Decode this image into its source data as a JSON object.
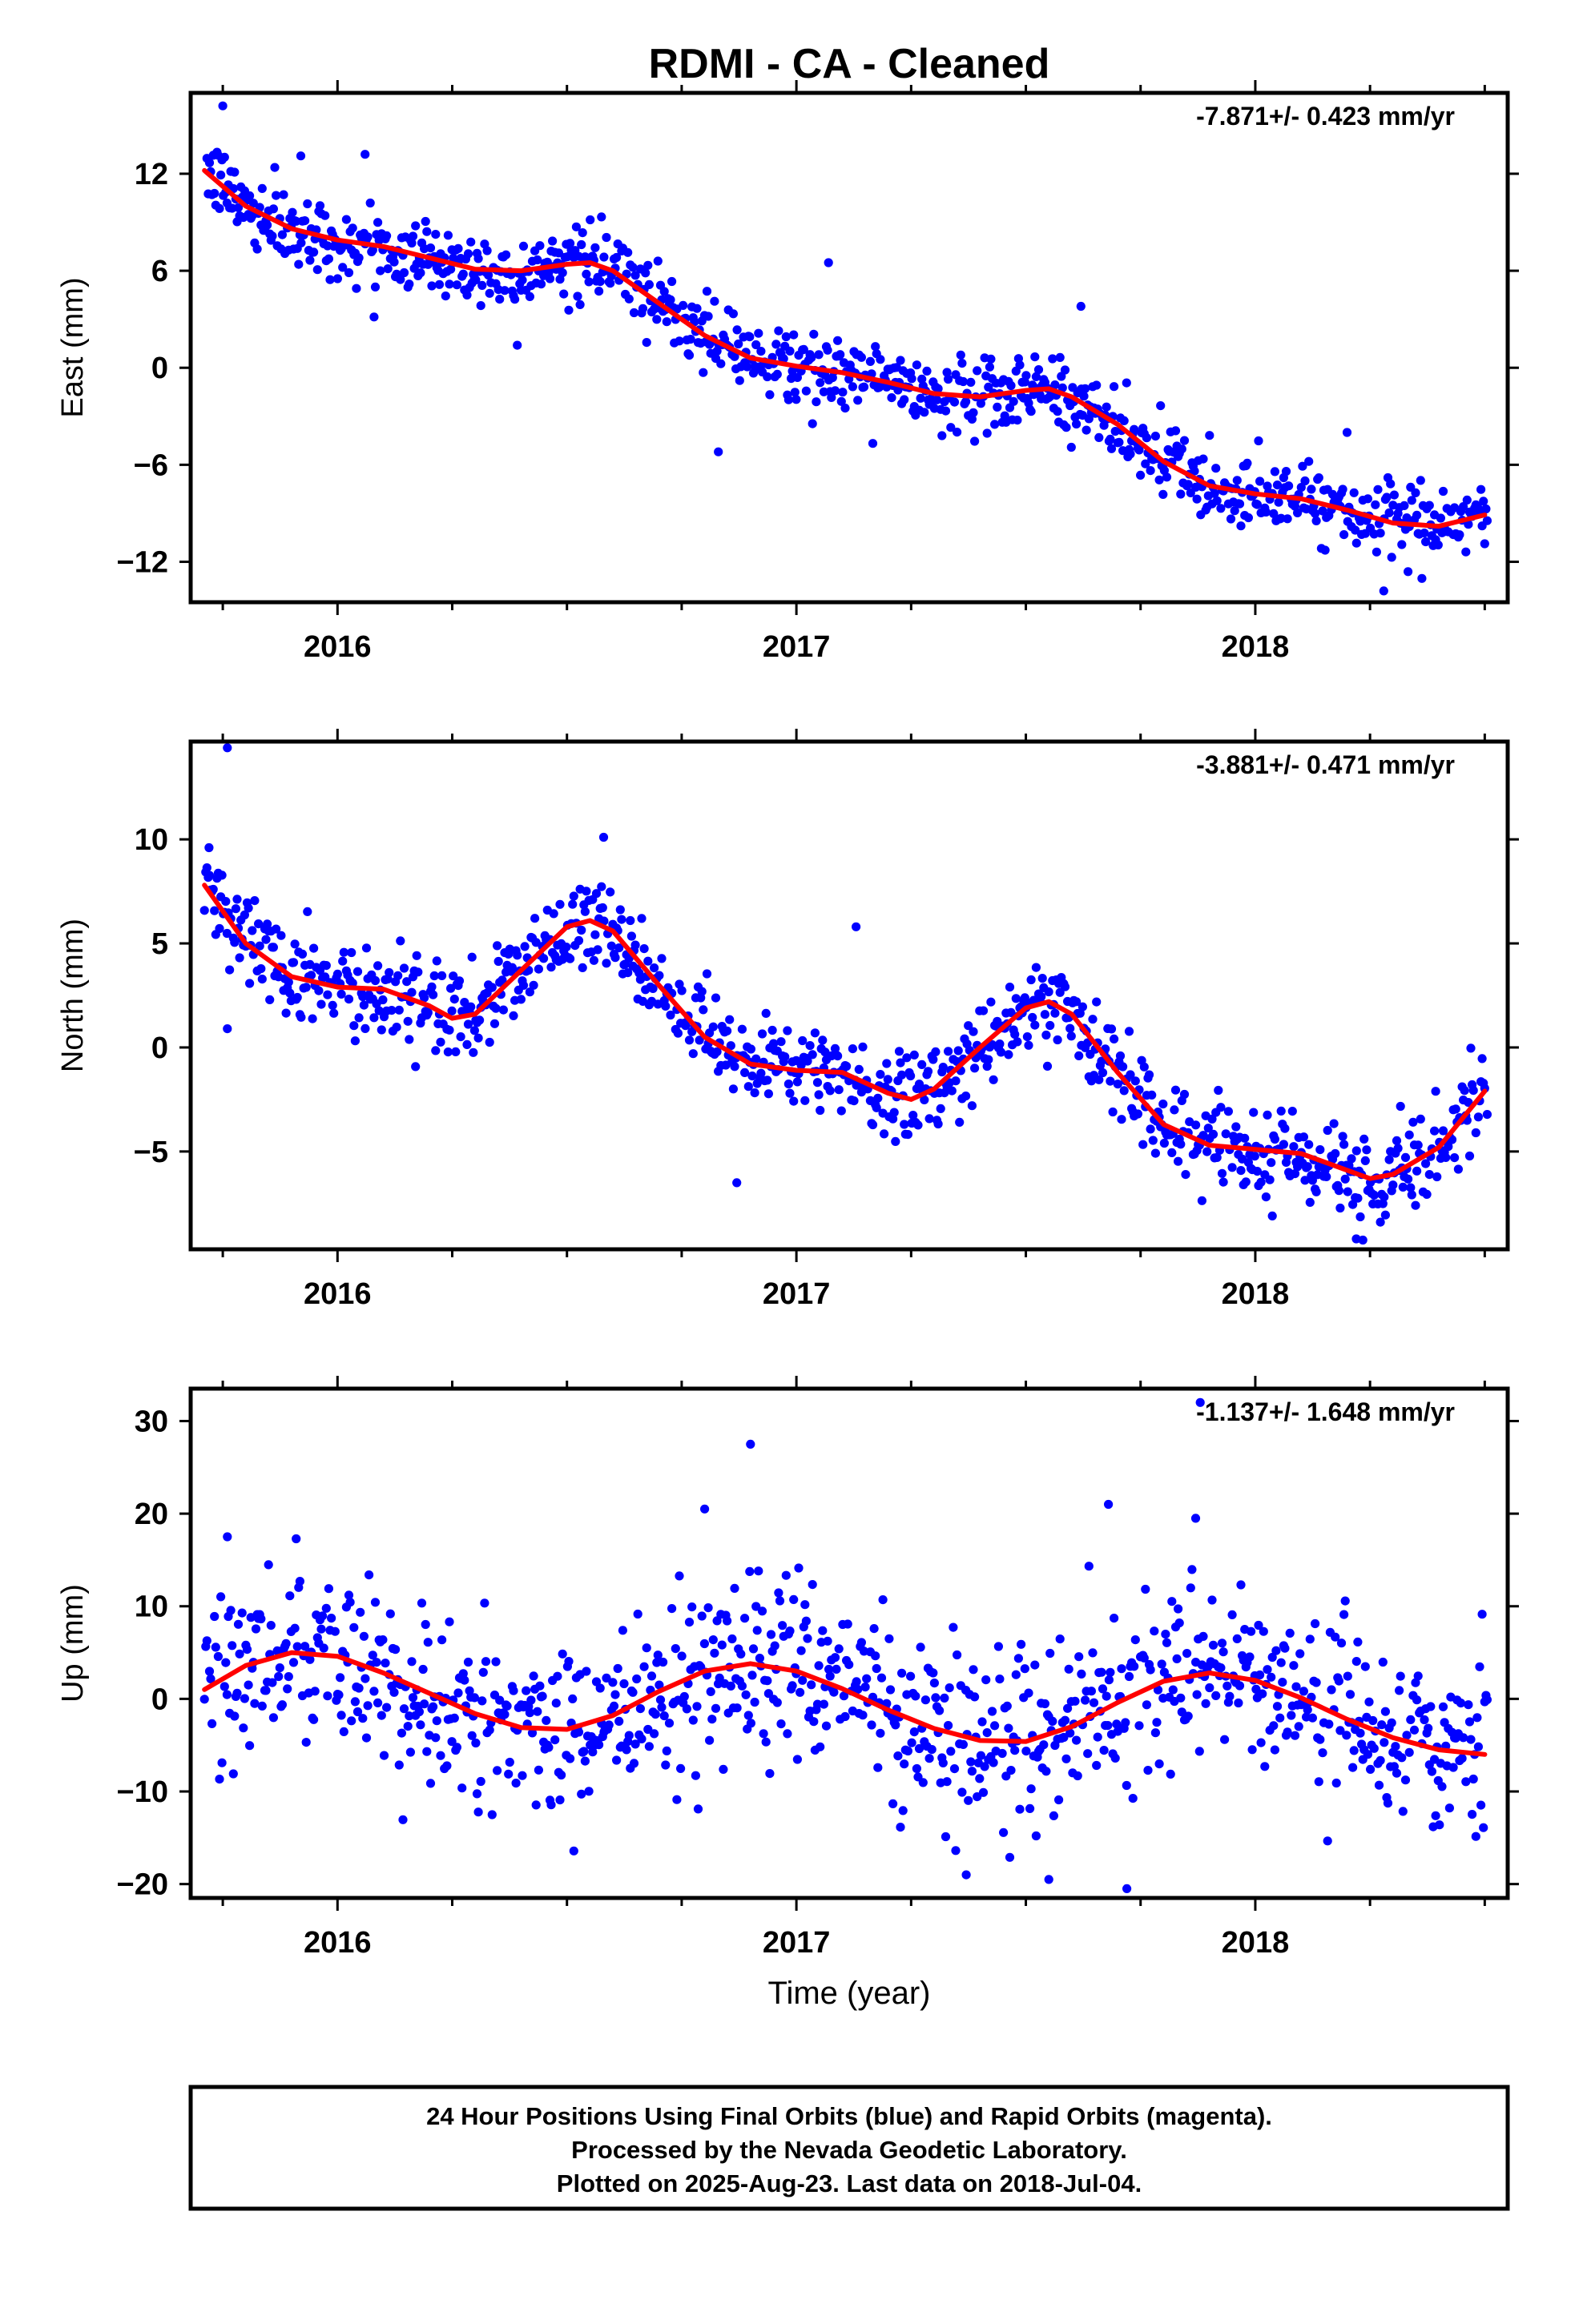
{
  "title": "RDMI  - CA - Cleaned",
  "footer": {
    "line1": "24 Hour Positions Using Final Orbits (blue) and Rapid Orbits (magenta).",
    "line2": "Processed by the Nevada Geodetic Laboratory.",
    "line3": "Plotted on 2025-Aug-23. Last data on 2018-Jul-04."
  },
  "colors": {
    "points": "#0000ff",
    "fit": "#ff0000",
    "frame": "#000000"
  },
  "chart_data": [
    {
      "type": "scatter",
      "ylabel": "East (mm)",
      "xlabel": "",
      "rate_label": "-7.871+/- 0.423 mm/yr",
      "xlim": [
        2015.68,
        2018.55
      ],
      "ylim": [
        -14.5,
        17
      ],
      "yticks": [
        -12,
        -6,
        0,
        6,
        12
      ],
      "xticks": [
        2016,
        2017,
        2018
      ],
      "xtick_labels": [
        "2016",
        "2017",
        "2018"
      ],
      "scatter_noise_mm": 1.1,
      "outliers": [
        {
          "x": 2015.75,
          "y": 16.2
        },
        {
          "x": 2015.92,
          "y": 13.1
        },
        {
          "x": 2016.06,
          "y": 13.2
        },
        {
          "x": 2017.07,
          "y": 6.5
        },
        {
          "x": 2017.62,
          "y": 3.8
        },
        {
          "x": 2016.83,
          "y": -5.2
        },
        {
          "x": 2018.28,
          "y": -13.8
        },
        {
          "x": 2018.2,
          "y": -4.0
        }
      ],
      "fit_curve": {
        "x": [
          2015.71,
          2015.8,
          2015.9,
          2016.0,
          2016.1,
          2016.2,
          2016.3,
          2016.4,
          2016.5,
          2016.55,
          2016.6,
          2016.7,
          2016.8,
          2016.9,
          2017.0,
          2017.1,
          2017.2,
          2017.3,
          2017.4,
          2017.5,
          2017.55,
          2017.6,
          2017.7,
          2017.8,
          2017.9,
          2018.0,
          2018.1,
          2018.2,
          2018.3,
          2018.4,
          2018.5
        ],
        "y": [
          12.2,
          10.0,
          8.6,
          7.9,
          7.5,
          6.8,
          6.1,
          6.0,
          6.4,
          6.5,
          6.0,
          4.0,
          2.0,
          0.6,
          0.1,
          -0.3,
          -0.9,
          -1.6,
          -1.8,
          -1.4,
          -1.3,
          -1.8,
          -3.5,
          -5.8,
          -7.3,
          -7.8,
          -8.1,
          -8.8,
          -9.6,
          -9.8,
          -9.1
        ]
      }
    },
    {
      "type": "scatter",
      "ylabel": "North (mm)",
      "xlabel": "",
      "rate_label": "-3.881+/- 0.471 mm/yr",
      "xlim": [
        2015.68,
        2018.55
      ],
      "ylim": [
        -9.7,
        14.7
      ],
      "yticks": [
        -5,
        0,
        5,
        10
      ],
      "xticks": [
        2016,
        2017,
        2018
      ],
      "xtick_labels": [
        "2016",
        "2017",
        "2018"
      ],
      "scatter_noise_mm": 1.1,
      "outliers": [
        {
          "x": 2015.76,
          "y": 14.4
        },
        {
          "x": 2015.72,
          "y": 9.6
        },
        {
          "x": 2016.58,
          "y": 10.1
        },
        {
          "x": 2016.87,
          "y": -6.5
        },
        {
          "x": 2017.13,
          "y": 5.8
        },
        {
          "x": 2018.22,
          "y": -9.2
        },
        {
          "x": 2015.76,
          "y": 0.9
        }
      ],
      "fit_curve": {
        "x": [
          2015.71,
          2015.8,
          2015.9,
          2016.0,
          2016.1,
          2016.2,
          2016.25,
          2016.3,
          2016.4,
          2016.5,
          2016.55,
          2016.6,
          2016.7,
          2016.8,
          2016.9,
          2017.0,
          2017.1,
          2017.2,
          2017.25,
          2017.3,
          2017.4,
          2017.5,
          2017.55,
          2017.6,
          2017.7,
          2017.8,
          2017.9,
          2018.0,
          2018.1,
          2018.2,
          2018.25,
          2018.3,
          2018.4,
          2018.5
        ],
        "y": [
          7.8,
          5.0,
          3.4,
          2.9,
          2.8,
          2.0,
          1.4,
          1.6,
          3.7,
          5.8,
          6.1,
          5.6,
          3.0,
          0.5,
          -0.8,
          -1.1,
          -1.2,
          -2.2,
          -2.5,
          -2.0,
          0.0,
          1.9,
          2.2,
          1.6,
          -1.2,
          -3.7,
          -4.7,
          -4.9,
          -5.1,
          -5.9,
          -6.3,
          -6.1,
          -4.8,
          -2.1
        ]
      }
    },
    {
      "type": "scatter",
      "ylabel": "Up (mm)",
      "xlabel": "Time (year)",
      "rate_label": "-1.137+/- 1.648 mm/yr",
      "xlim": [
        2015.68,
        2018.55
      ],
      "ylim": [
        -21.5,
        33.5
      ],
      "yticks": [
        -20,
        -10,
        0,
        10,
        20,
        30
      ],
      "xticks": [
        2016,
        2017,
        2018
      ],
      "xtick_labels": [
        "2016",
        "2017",
        "2018"
      ],
      "scatter_noise_mm": 4.8,
      "outliers": [
        {
          "x": 2016.9,
          "y": 27.5
        },
        {
          "x": 2016.8,
          "y": 20.5
        },
        {
          "x": 2017.68,
          "y": 21.0
        },
        {
          "x": 2017.88,
          "y": 32.0
        },
        {
          "x": 2017.72,
          "y": -20.5
        },
        {
          "x": 2017.55,
          "y": -19.5
        },
        {
          "x": 2017.37,
          "y": -19.0
        },
        {
          "x": 2015.76,
          "y": 17.5
        },
        {
          "x": 2017.87,
          "y": 19.5
        }
      ],
      "fit_curve": {
        "x": [
          2015.71,
          2015.8,
          2015.9,
          2016.0,
          2016.1,
          2016.2,
          2016.3,
          2016.4,
          2016.5,
          2016.6,
          2016.7,
          2016.8,
          2016.9,
          2017.0,
          2017.1,
          2017.2,
          2017.3,
          2017.4,
          2017.5,
          2017.6,
          2017.7,
          2017.8,
          2017.9,
          2018.0,
          2018.1,
          2018.2,
          2018.3,
          2018.4,
          2018.5
        ],
        "y": [
          1.0,
          3.6,
          5.0,
          4.6,
          2.8,
          0.6,
          -1.6,
          -3.1,
          -3.3,
          -1.8,
          0.8,
          3.0,
          3.8,
          3.0,
          1.1,
          -1.2,
          -3.2,
          -4.5,
          -4.6,
          -3.0,
          -0.4,
          1.9,
          2.8,
          2.0,
          0.1,
          -2.2,
          -4.2,
          -5.5,
          -6.0
        ]
      }
    }
  ]
}
